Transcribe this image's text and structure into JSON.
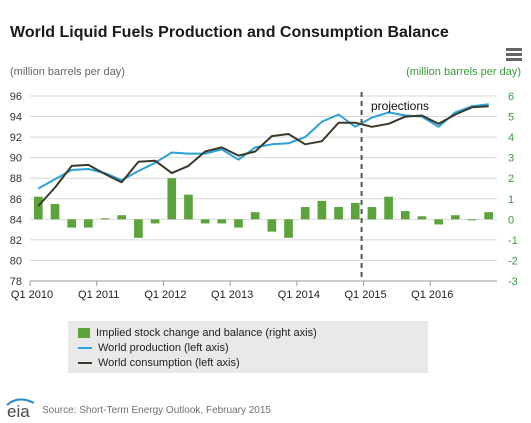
{
  "title": "World Liquid Fuels Production and Consumption Balance",
  "menu_icon": "hamburger-menu-icon",
  "source": "Source: Short-Term Energy Outlook, February 2015",
  "logo_text": "eia",
  "colors": {
    "production": "#2aa3d8",
    "consumption": "#3b3a2a",
    "stock_bars": "#5da33b",
    "right_axis": "#3a9a3a",
    "grid": "#d8d8d8",
    "projection_line": "#555555"
  },
  "chart_data": {
    "type": "bar+line",
    "left_axis": {
      "label": "(million barrels per day)",
      "ylim": [
        78,
        96
      ],
      "ticks": [
        78,
        80,
        82,
        84,
        86,
        88,
        90,
        92,
        94,
        96
      ]
    },
    "right_axis": {
      "label": "(million barrels per day)",
      "ylim": [
        -3,
        6
      ],
      "ticks": [
        -3,
        -2,
        -1,
        0,
        1,
        2,
        3,
        4,
        5,
        6
      ]
    },
    "x": [
      "2010Q1",
      "2010Q2",
      "2010Q3",
      "2010Q4",
      "2011Q1",
      "2011Q2",
      "2011Q3",
      "2011Q4",
      "2012Q1",
      "2012Q2",
      "2012Q3",
      "2012Q4",
      "2013Q1",
      "2013Q2",
      "2013Q3",
      "2013Q4",
      "2014Q1",
      "2014Q2",
      "2014Q3",
      "2014Q4",
      "2015Q1",
      "2015Q2",
      "2015Q3",
      "2015Q4",
      "2016Q1",
      "2016Q2",
      "2016Q3",
      "2016Q4"
    ],
    "x_tick_labels": [
      "Q1 2010",
      "Q1 2011",
      "Q1 2012",
      "Q1 2013",
      "Q1 2014",
      "Q1 2015",
      "Q1 2016"
    ],
    "grid": true,
    "annotation": "projections",
    "projection_start": "2015Q1",
    "series": [
      {
        "name": "Implied stock change and balance (right axis)",
        "type": "bar",
        "axis": "right",
        "values": [
          1.1,
          0.75,
          -0.4,
          -0.4,
          0.05,
          0.2,
          -0.9,
          -0.2,
          2.0,
          1.2,
          -0.2,
          -0.2,
          -0.4,
          0.35,
          -0.6,
          -0.9,
          0.6,
          0.9,
          0.6,
          0.8,
          0.6,
          1.1,
          0.4,
          0.15,
          -0.25,
          0.2,
          0.0,
          0.35
        ]
      },
      {
        "name": "World production (left axis)",
        "type": "line",
        "axis": "left",
        "values": [
          87.0,
          87.9,
          88.8,
          88.9,
          88.5,
          87.8,
          88.7,
          89.5,
          90.5,
          90.4,
          90.4,
          90.8,
          89.8,
          91.0,
          91.3,
          91.4,
          92.0,
          93.5,
          94.2,
          93.0,
          93.9,
          94.4,
          94.1,
          94.0,
          93.0,
          94.4,
          95.0,
          95.2
        ]
      },
      {
        "name": "World consumption (left axis)",
        "type": "line",
        "axis": "left",
        "values": [
          85.3,
          87.1,
          89.2,
          89.3,
          88.4,
          87.6,
          89.6,
          89.7,
          88.5,
          89.2,
          90.6,
          91.0,
          90.2,
          90.6,
          92.1,
          92.3,
          91.3,
          91.6,
          93.4,
          93.4,
          93.0,
          93.3,
          94.0,
          94.1,
          93.3,
          94.2,
          94.9,
          95.0
        ]
      }
    ]
  }
}
